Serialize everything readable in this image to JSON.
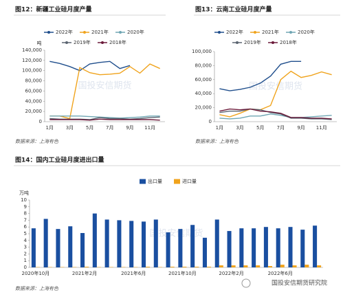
{
  "chart_data": [
    {
      "type": "line",
      "title": "图12：新疆工业硅月度产量",
      "y_label": "吨",
      "watermark": "国投安信期货",
      "source": "数据来源：上海有色",
      "categories": [
        "1月",
        null,
        "3月",
        null,
        "5月",
        null,
        "7月",
        null,
        "9月",
        null,
        "11月",
        null
      ],
      "ylim": [
        0,
        140000
      ],
      "yticks": [
        0,
        {
          "value": 20000,
          "label": "20,000"
        },
        {
          "value": 40000,
          "label": "40,000"
        },
        {
          "value": 60000,
          "label": "60,000"
        },
        {
          "value": 80000,
          "label": "80,000"
        },
        {
          "value": 100000,
          "label": "100,000"
        },
        {
          "value": 120000,
          "label": "120,000"
        },
        {
          "value": 140000,
          "label": "140,000"
        }
      ],
      "series": [
        {
          "name": "2022年",
          "color": "#1f4e8c",
          "values": [
            118000,
            114000,
            108000,
            100000,
            113000,
            116000,
            118000,
            104000,
            110000,
            null,
            null,
            null
          ]
        },
        {
          "name": "2021年",
          "color": "#f0a31c",
          "values": [
            11000,
            11000,
            6000,
            106000,
            96000,
            92000,
            93000,
            95000,
            108000,
            95000,
            113000,
            104000
          ]
        },
        {
          "name": "2020年",
          "color": "#6fa6b3",
          "values": [
            11000,
            11000,
            11000,
            11000,
            10000,
            9000,
            8000,
            7000,
            8000,
            9000,
            11000,
            11000
          ]
        },
        {
          "name": "2019年",
          "color": "#5a6470",
          "values": [
            6000,
            5000,
            5000,
            5000,
            4000,
            8000,
            6000,
            6000,
            5000,
            6000,
            8000,
            9000
          ]
        },
        {
          "name": "2018年",
          "color": "#6b1a3a",
          "values": [
            4000,
            4000,
            4000,
            4000,
            3000,
            5000,
            4000,
            4000,
            4000,
            4000,
            4000,
            3000
          ]
        }
      ]
    },
    {
      "type": "line",
      "title": "图13：云南工业硅月度产量",
      "watermark": "国投安信期货",
      "source": "数据来源：上海有色",
      "categories": [
        "1月",
        null,
        "3月",
        null,
        "5月",
        null,
        "7月",
        null,
        "9月",
        null,
        "11月",
        null
      ],
      "ylim": [
        0,
        100000
      ],
      "yticks": [
        0,
        {
          "value": 20000,
          "label": "20,000"
        },
        {
          "value": 40000,
          "label": "40,000"
        },
        {
          "value": 60000,
          "label": "60,000"
        },
        {
          "value": 80000,
          "label": "80,000"
        },
        {
          "value": 100000,
          "label": "100,000"
        }
      ],
      "series": [
        {
          "name": "2022年",
          "color": "#1f4e8c",
          "values": [
            47000,
            44000,
            46000,
            49000,
            55000,
            65000,
            82000,
            86000,
            86000,
            null,
            null,
            null
          ]
        },
        {
          "name": "2021年",
          "color": "#f0a31c",
          "values": [
            10000,
            7000,
            12000,
            18000,
            17000,
            23000,
            60000,
            72000,
            63000,
            66000,
            71000,
            67000
          ]
        },
        {
          "name": "2020年",
          "color": "#6fa6b3",
          "values": [
            5000,
            4000,
            5000,
            8000,
            8000,
            11000,
            9000,
            6000,
            6000,
            7000,
            8000,
            9000
          ]
        },
        {
          "name": "2019年",
          "color": "#5a6470",
          "values": [
            13000,
            15000,
            15000,
            18000,
            17000,
            13000,
            11000,
            5000,
            5000,
            4000,
            4000,
            3000
          ]
        },
        {
          "name": "2018年",
          "color": "#6b1a3a",
          "values": [
            15000,
            18000,
            17000,
            18000,
            15000,
            14000,
            12000,
            6000,
            6000,
            5000,
            5000,
            4000
          ]
        }
      ]
    },
    {
      "type": "bar",
      "title": "图14：国内工业硅月度进出口量",
      "y_label": "万吨",
      "watermark": "国投安信期货",
      "source": "数据来源：上海有色",
      "categories": [
        "2020年10月",
        null,
        null,
        null,
        "2021年2月",
        null,
        null,
        null,
        "2021年6月",
        null,
        null,
        null,
        "2021年10月",
        null,
        null,
        null,
        "2022年2月",
        null,
        null,
        null,
        "2022年6月",
        null,
        null,
        null
      ],
      "ylim": [
        0,
        10
      ],
      "yticks": [
        0,
        1,
        2,
        3,
        4,
        5,
        6,
        7,
        8,
        9,
        10
      ],
      "series": [
        {
          "name": "出口量",
          "color": "#1a4fa0",
          "values": [
            5.8,
            7.2,
            5.7,
            6.1,
            5.1,
            8.0,
            7.1,
            7.0,
            6.9,
            6.8,
            7.1,
            5.2,
            5.7,
            6.3,
            4.4,
            7.1,
            5.4,
            5.8,
            5.8,
            6.0,
            5.8,
            6.0,
            5.6,
            6.2
          ]
        },
        {
          "name": "进口量",
          "color": "#f0a31c",
          "values": [
            0.05,
            0.05,
            0.05,
            0.05,
            0.1,
            0.05,
            0.05,
            0.05,
            0.05,
            0.1,
            0.05,
            0.1,
            0.1,
            0.1,
            0.1,
            0.3,
            0.3,
            0.3,
            0.3,
            0.2,
            0.4,
            0.3,
            0.4,
            0.3
          ]
        }
      ]
    }
  ],
  "brand": "国投安信期货研究院"
}
